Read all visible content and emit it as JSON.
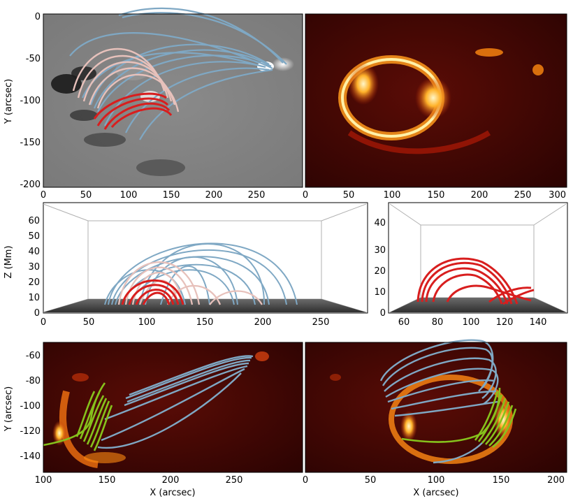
{
  "figure": {
    "panels": [
      {
        "id": "magnetogram-fieldlines",
        "ylabel": "Y (arcsec)",
        "xticks": [
          "0",
          "50",
          "100",
          "150",
          "200",
          "250"
        ],
        "yticks": [
          "0",
          "-50",
          "-100",
          "-150",
          "-200"
        ]
      },
      {
        "id": "euv-image",
        "xticks": [
          "0",
          "50",
          "100",
          "150",
          "200",
          "250",
          "300"
        ]
      },
      {
        "id": "fieldlines-side-view",
        "ylabel": "Z (Mm)",
        "xticks": [
          "0",
          "50",
          "100",
          "150",
          "200",
          "250"
        ],
        "yticks": [
          "0",
          "10",
          "20",
          "30",
          "40",
          "50",
          "60"
        ]
      },
      {
        "id": "flux-rope-side-view",
        "xticks": [
          "60",
          "80",
          "100",
          "120",
          "140"
        ],
        "yticks": [
          "0",
          "10",
          "20",
          "30",
          "40"
        ]
      },
      {
        "id": "euv-fieldlines-left",
        "ylabel": "Y (arcsec)",
        "xlabel": "X (arcsec)",
        "xticks": [
          "100",
          "150",
          "200",
          "250"
        ],
        "yticks": [
          "-60",
          "-80",
          "-100",
          "-120",
          "-140"
        ]
      },
      {
        "id": "euv-fieldlines-right",
        "xlabel": "X (arcsec)",
        "xticks": [
          "0",
          "50",
          "100",
          "150",
          "200"
        ]
      }
    ],
    "colors": {
      "blue_lines": "#7fa8c4",
      "pink_lines": "#e7c1bb",
      "red_lines": "#d81e1e",
      "green_lines": "#86c21c"
    }
  }
}
